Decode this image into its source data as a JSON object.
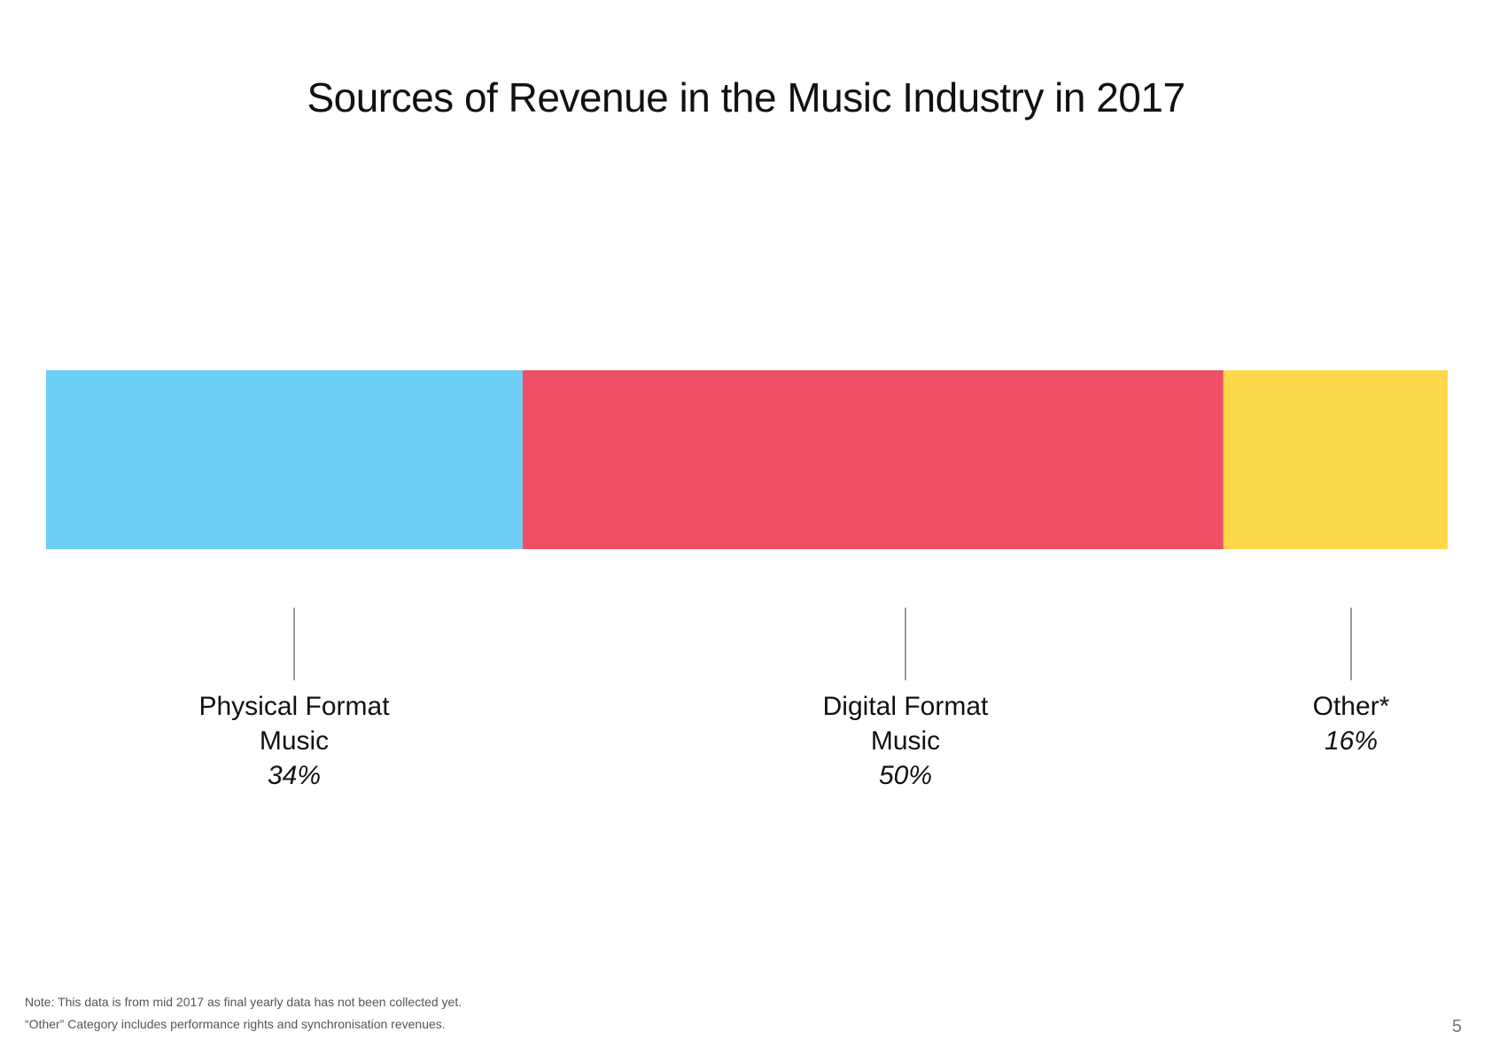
{
  "chart_data": {
    "type": "bar",
    "orientation": "horizontal-stacked-100",
    "title": "Sources of Revenue in the Music Industry in 2017",
    "unit": "%",
    "total": 100,
    "segments": [
      {
        "label_lines": [
          "Physical Format",
          "Music"
        ],
        "value": 34,
        "value_label": "34%",
        "color": "#6dcff6"
      },
      {
        "label_lines": [
          "Digital Format",
          "Music"
        ],
        "value": 50,
        "value_label": "50%",
        "color": "#ef5068"
      },
      {
        "label_lines": [
          "Other*"
        ],
        "value": 16,
        "value_label": "16%",
        "color": "#fdd84b"
      }
    ],
    "legend": "none",
    "grid": false
  },
  "notes": {
    "line1": "Note: This data is from mid 2017 as final yearly data has not been collected yet.",
    "line2": "“Other” Category includes performance rights and synchronisation revenues."
  },
  "page_number": "5",
  "colors": {
    "leader_line": "#999999",
    "label_text": "#111111"
  }
}
